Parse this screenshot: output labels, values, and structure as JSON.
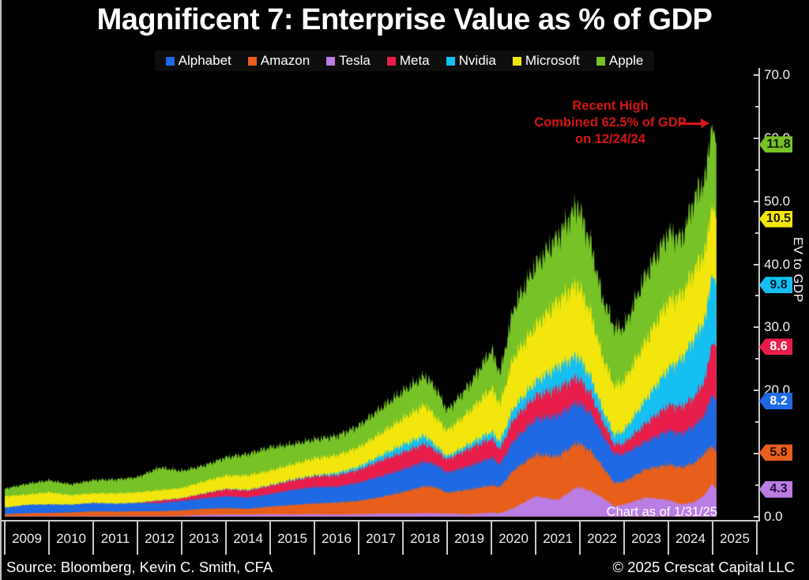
{
  "title": "Magnificent 7: Enterprise Value as % of GDP",
  "legend": [
    {
      "name": "Alphabet",
      "color": "#1f6ae4"
    },
    {
      "name": "Amazon",
      "color": "#e85f1b"
    },
    {
      "name": "Tesla",
      "color": "#ba7de4"
    },
    {
      "name": "Meta",
      "color": "#e91d49"
    },
    {
      "name": "Nvidia",
      "color": "#15bff2"
    },
    {
      "name": "Microsoft",
      "color": "#f2e60d"
    },
    {
      "name": "Apple",
      "color": "#77c226"
    }
  ],
  "annotation": {
    "line1": "Recent High",
    "line2": "Combined 62.5% of GDP",
    "line3": "on 12/24/24",
    "color": "#d41616"
  },
  "chart_note": "Chart as of 1/31/25",
  "y_axis": {
    "label": "EV to GDP",
    "min": 0,
    "max": 70,
    "major_step": 10,
    "minor_step": 5
  },
  "x_axis": {
    "years": [
      "2009",
      "2010",
      "2011",
      "2012",
      "2013",
      "2014",
      "2015",
      "2016",
      "2017",
      "2018",
      "2019",
      "2020",
      "2021",
      "2022",
      "2023",
      "2024",
      "2025"
    ]
  },
  "badges": [
    {
      "series": "Apple",
      "label": "11.8",
      "color": "#77c226",
      "text_color": "#0e2000"
    },
    {
      "series": "Microsoft",
      "label": "10.5",
      "color": "#f2e60d",
      "text_color": "#1c1a00"
    },
    {
      "series": "Nvidia",
      "label": "9.8",
      "color": "#15bff2",
      "text_color": "#002231"
    },
    {
      "series": "Meta",
      "label": "8.6",
      "color": "#e91d49",
      "text_color": "#ffffff"
    },
    {
      "series": "Alphabet",
      "label": "8.2",
      "color": "#1f6ae4",
      "text_color": "#ffffff"
    },
    {
      "series": "Amazon",
      "label": "5.8",
      "color": "#e85f1b",
      "text_color": "#1f0c00"
    },
    {
      "series": "Tesla",
      "label": "4.3",
      "color": "#ba7de4",
      "text_color": "#200b38"
    }
  ],
  "footer": {
    "source": "Source: Bloomberg, Kevin C. Smith, CFA",
    "copyright": "© 2025 Crescat Capital LLC"
  },
  "chart_data": {
    "type": "area",
    "stacked": true,
    "stack_order": "bottom-to-top",
    "title": "Magnificent 7: Enterprise Value as % of GDP",
    "ylabel": "EV to GDP",
    "ylim": [
      0,
      70
    ],
    "xlim": [
      2009,
      2025.085
    ],
    "grid": false,
    "legend_position": "top",
    "recent_high": {
      "date": "12/24/24",
      "combined_total": 62.5
    },
    "as_of": {
      "date": "1/31/25",
      "combined_total": 59.0
    },
    "x": [
      2009.0,
      2009.5,
      2010.0,
      2010.5,
      2011.0,
      2011.5,
      2012.0,
      2012.5,
      2013.0,
      2013.5,
      2014.0,
      2014.5,
      2015.0,
      2015.5,
      2016.0,
      2016.5,
      2017.0,
      2017.5,
      2018.0,
      2018.5,
      2018.75,
      2019.0,
      2019.5,
      2020.0,
      2020.2,
      2020.5,
      2021.0,
      2021.5,
      2021.95,
      2022.25,
      2022.5,
      2022.78,
      2023.0,
      2023.5,
      2024.0,
      2024.3,
      2024.6,
      2024.85,
      2024.98,
      2025.085
    ],
    "series": [
      {
        "name": "Tesla",
        "color": "#ba7de4",
        "values": [
          0,
          0,
          0,
          0.02,
          0.05,
          0.06,
          0.06,
          0.06,
          0.1,
          0.25,
          0.3,
          0.3,
          0.35,
          0.3,
          0.35,
          0.3,
          0.35,
          0.45,
          0.45,
          0.5,
          0.5,
          0.45,
          0.35,
          0.6,
          0.5,
          1.3,
          3.2,
          2.6,
          4.7,
          4.0,
          3.0,
          1.6,
          1.9,
          3.0,
          2.6,
          1.9,
          2.3,
          3.6,
          5.3,
          4.3
        ]
      },
      {
        "name": "Amazon",
        "color": "#e85f1b",
        "values": [
          0.35,
          0.5,
          0.55,
          0.6,
          0.75,
          0.7,
          0.75,
          0.75,
          0.85,
          0.95,
          1.0,
          0.9,
          1.2,
          1.5,
          1.7,
          1.9,
          2.1,
          2.6,
          3.4,
          4.3,
          4.1,
          3.3,
          3.9,
          4.3,
          4.2,
          6.0,
          6.6,
          6.9,
          7.0,
          6.3,
          5.0,
          3.7,
          3.6,
          4.5,
          5.6,
          5.9,
          6.2,
          6.6,
          6.0,
          5.8
        ]
      },
      {
        "name": "Alphabet",
        "color": "#1f6ae4",
        "values": [
          1.0,
          1.3,
          1.3,
          1.2,
          1.3,
          1.2,
          1.3,
          1.3,
          1.5,
          1.7,
          1.9,
          1.8,
          2.0,
          2.4,
          2.6,
          2.5,
          2.9,
          3.3,
          3.6,
          3.9,
          3.6,
          3.2,
          3.7,
          4.4,
          3.6,
          4.7,
          5.6,
          6.5,
          6.4,
          6.0,
          5.1,
          4.6,
          4.4,
          4.4,
          5.4,
          5.3,
          5.9,
          6.2,
          8.1,
          8.2
        ]
      },
      {
        "name": "Meta",
        "color": "#e91d49",
        "values": [
          0,
          0,
          0,
          0,
          0,
          0,
          0,
          0.4,
          0.4,
          0.7,
          1.1,
          1.1,
          1.3,
          1.5,
          1.7,
          1.8,
          2.0,
          2.5,
          2.7,
          2.8,
          2.2,
          2.1,
          2.8,
          3.0,
          2.4,
          3.4,
          3.7,
          4.3,
          4.0,
          3.1,
          2.3,
          1.5,
          1.7,
          2.9,
          4.0,
          4.3,
          4.6,
          5.6,
          8.2,
          8.6
        ]
      },
      {
        "name": "Nvidia",
        "color": "#15bff2",
        "values": [
          0.05,
          0.05,
          0.07,
          0.06,
          0.06,
          0.09,
          0.05,
          0.05,
          0.05,
          0.05,
          0.06,
          0.1,
          0.1,
          0.15,
          0.15,
          0.35,
          0.5,
          0.8,
          1.2,
          1.3,
          0.8,
          0.45,
          0.7,
          1.1,
          1.2,
          1.8,
          2.2,
          3.4,
          3.4,
          2.6,
          1.8,
          1.5,
          2.0,
          3.8,
          5.8,
          7.5,
          9.4,
          9.5,
          11.0,
          9.8
        ]
      },
      {
        "name": "Microsoft",
        "color": "#f2e60d",
        "values": [
          1.8,
          1.6,
          1.9,
          1.5,
          1.5,
          1.6,
          1.65,
          1.6,
          1.6,
          1.9,
          2.1,
          2.3,
          2.3,
          2.4,
          2.7,
          2.8,
          3.1,
          3.5,
          4.2,
          4.9,
          4.5,
          4.1,
          5.2,
          6.9,
          6.0,
          8.0,
          8.9,
          10.5,
          11.5,
          10.2,
          8.4,
          7.8,
          7.9,
          9.4,
          10.8,
          10.3,
          10.9,
          10.8,
          11.0,
          10.5
        ]
      },
      {
        "name": "Apple",
        "color": "#77c226",
        "values": [
          1.2,
          1.7,
          1.9,
          1.7,
          2.1,
          2.2,
          2.4,
          3.6,
          2.7,
          2.5,
          2.9,
          3.4,
          3.7,
          3.2,
          3.0,
          3.1,
          3.4,
          4.0,
          4.3,
          4.6,
          4.6,
          3.2,
          4.2,
          6.1,
          4.9,
          7.8,
          9.6,
          10.2,
          12.5,
          11.0,
          9.3,
          9.3,
          8.4,
          10.5,
          10.8,
          8.9,
          11.4,
          11.6,
          12.9,
          11.8
        ]
      }
    ]
  }
}
